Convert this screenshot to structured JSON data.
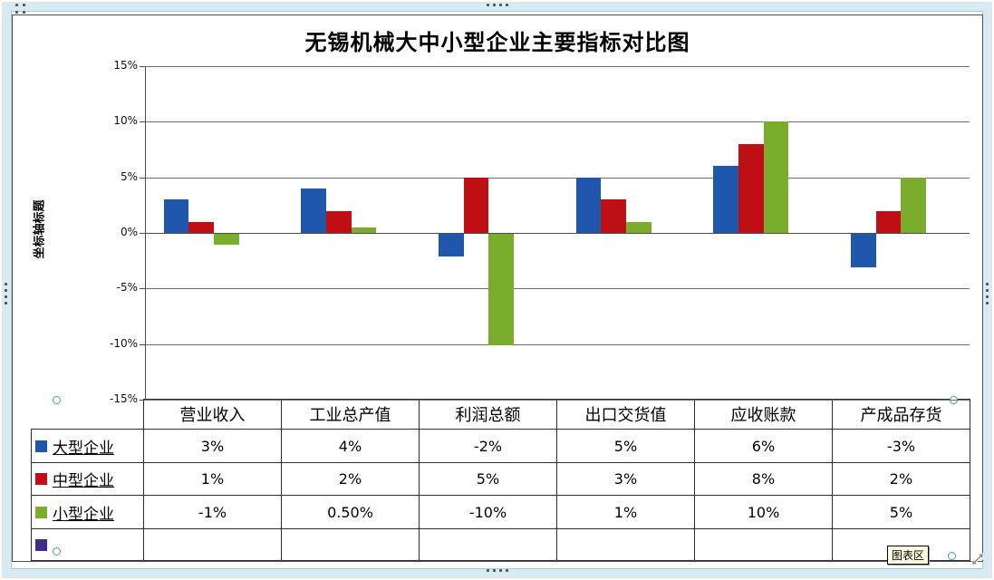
{
  "frame": {
    "tooltip_label": "图表区"
  },
  "chart_data": {
    "type": "bar",
    "title": "无锡机械大中小型企业主要指标对比图",
    "y_axis_title": "坐标轴标题",
    "categories": [
      "营业收入",
      "工业总产值",
      "利润总额",
      "出口交货值",
      "应收账款",
      "产成品存货"
    ],
    "series": [
      {
        "name": "大型企业",
        "color": "#1E57AC",
        "values": [
          3,
          4,
          -2,
          5,
          6,
          -3
        ],
        "display": [
          "3%",
          "4%",
          "-2%",
          "5%",
          "6%",
          "-3%"
        ]
      },
      {
        "name": "中型企业",
        "color": "#C00F14",
        "values": [
          1,
          2,
          5,
          3,
          8,
          2
        ],
        "display": [
          "1%",
          "2%",
          "5%",
          "3%",
          "8%",
          "2%"
        ]
      },
      {
        "name": "小型企业",
        "color": "#7AAD2B",
        "values": [
          -1,
          0.5,
          -10,
          1,
          10,
          5
        ],
        "display": [
          "-1%",
          "0.50%",
          "-10%",
          "1%",
          "10%",
          "5%"
        ]
      },
      {
        "name": "",
        "color": "#3E2C87",
        "values": [
          null,
          null,
          null,
          null,
          null,
          null
        ],
        "display": [
          "",
          "",
          "",
          "",
          "",
          ""
        ]
      }
    ],
    "y_ticks": [
      "15%",
      "10%",
      "5%",
      "0%",
      "-5%",
      "-10%",
      "-15%"
    ],
    "ylim": [
      -15,
      15
    ],
    "grid": true,
    "legend_position": "data-table-left"
  }
}
